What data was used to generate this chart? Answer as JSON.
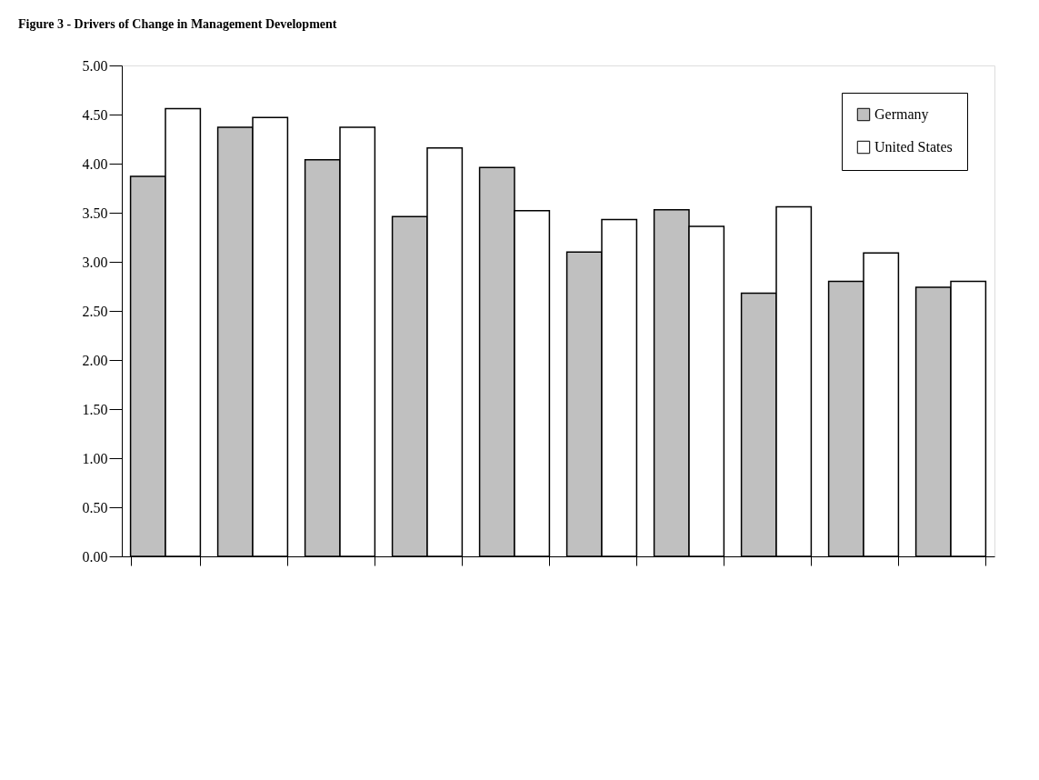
{
  "chart_data": {
    "type": "bar",
    "title": "Figure 3 - Drivers of Change in Management Development",
    "categories": [
      null,
      null,
      null,
      null,
      null,
      null,
      null,
      null,
      null,
      null
    ],
    "series": [
      {
        "name": "Germany",
        "color": "#c0c0c0",
        "values": [
          3.87,
          4.37,
          4.04,
          3.46,
          3.96,
          3.1,
          3.53,
          2.68,
          2.8,
          2.74
        ]
      },
      {
        "name": "United States",
        "color": "#ffffff",
        "values": [
          4.56,
          4.47,
          4.37,
          4.16,
          3.52,
          3.43,
          3.36,
          3.56,
          3.09,
          2.8
        ]
      }
    ],
    "ylim": [
      0,
      5
    ],
    "yticks": [
      {
        "value": 0,
        "label": "0.00"
      },
      {
        "value": 0.5,
        "label": "0.50"
      },
      {
        "value": 1,
        "label": "1.00"
      },
      {
        "value": 1.5,
        "label": "1.50"
      },
      {
        "value": 2,
        "label": "2.00"
      },
      {
        "value": 2.5,
        "label": "2.50"
      },
      {
        "value": 3,
        "label": "3.00"
      },
      {
        "value": 3.5,
        "label": "3.50"
      },
      {
        "value": 4,
        "label": "4.00"
      },
      {
        "value": 4.5,
        "label": "4.50"
      },
      {
        "value": 5,
        "label": "5.00"
      }
    ],
    "tick_labels": "y",
    "grid": false,
    "legend": "top right"
  }
}
